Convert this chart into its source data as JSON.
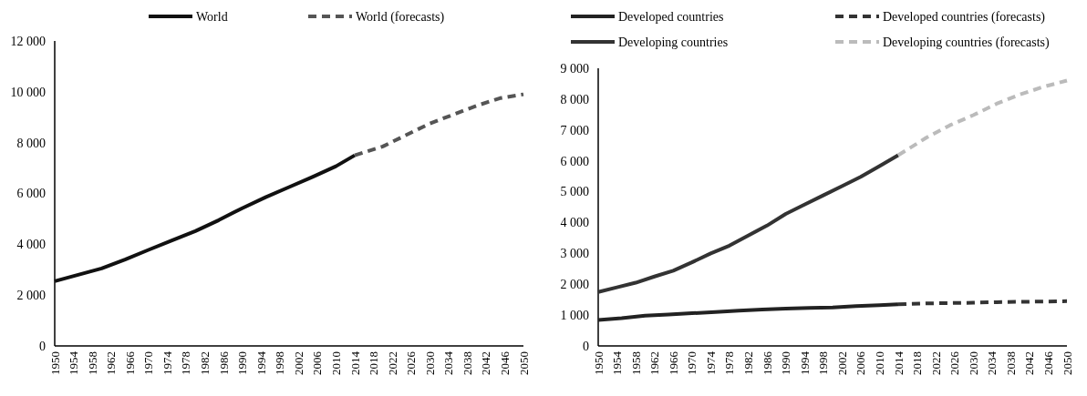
{
  "chart_data": [
    {
      "type": "line",
      "legend": "top",
      "grid": false,
      "xlim": [
        1950,
        2050
      ],
      "xticks": [
        1950,
        1954,
        1958,
        1962,
        1966,
        1970,
        1974,
        1978,
        1982,
        1986,
        1990,
        1994,
        1998,
        2002,
        2006,
        2010,
        2014,
        2018,
        2022,
        2026,
        2030,
        2034,
        2038,
        2042,
        2046,
        2050
      ],
      "ylim": [
        0,
        12000
      ],
      "yticks": [
        {
          "value": 0,
          "label": "0"
        },
        {
          "value": 2000,
          "label": "2 000"
        },
        {
          "value": 4000,
          "label": "4 000"
        },
        {
          "value": 6000,
          "label": "6 000"
        },
        {
          "value": 8000,
          "label": "8 000"
        },
        {
          "value": 10000,
          "label": "10 000"
        },
        {
          "value": 12000,
          "label": "12 000"
        }
      ],
      "series": [
        {
          "name": "World",
          "color": "#111111",
          "line_style": "solid",
          "x": [
            1950,
            1955,
            1960,
            1965,
            1970,
            1975,
            1980,
            1985,
            1990,
            1995,
            2000,
            2005,
            2010,
            2014
          ],
          "values": [
            2550,
            2800,
            3050,
            3400,
            3780,
            4150,
            4520,
            4950,
            5420,
            5850,
            6250,
            6650,
            7070,
            7500
          ]
        },
        {
          "name": "World (forecasts)",
          "color": "#555555",
          "line_style": "dashed",
          "x": [
            2014,
            2020,
            2025,
            2030,
            2035,
            2040,
            2045,
            2050
          ],
          "values": [
            7500,
            7850,
            8300,
            8750,
            9100,
            9450,
            9750,
            9900
          ]
        }
      ]
    },
    {
      "type": "line",
      "legend": "top",
      "grid": false,
      "xlim": [
        1950,
        2050
      ],
      "xticks": [
        1950,
        1954,
        1958,
        1962,
        1966,
        1970,
        1974,
        1978,
        1982,
        1986,
        1990,
        1994,
        1998,
        2002,
        2006,
        2010,
        2014,
        2018,
        2022,
        2026,
        2030,
        2034,
        2038,
        2042,
        2046,
        2050
      ],
      "ylim": [
        0,
        9000
      ],
      "yticks": [
        {
          "value": 0,
          "label": "0"
        },
        {
          "value": 1000,
          "label": "1 000"
        },
        {
          "value": 2000,
          "label": "2 000"
        },
        {
          "value": 3000,
          "label": "3 000"
        },
        {
          "value": 4000,
          "label": "4 000"
        },
        {
          "value": 5000,
          "label": "5 000"
        },
        {
          "value": 6000,
          "label": "6 000"
        },
        {
          "value": 7000,
          "label": "7 000"
        },
        {
          "value": 8000,
          "label": "8 000"
        },
        {
          "value": 9000,
          "label": "9 000"
        }
      ],
      "series": [
        {
          "name": "Developed countries",
          "color": "#222222",
          "line_style": "solid",
          "x": [
            1950,
            1955,
            1960,
            1965,
            1970,
            1975,
            1980,
            1985,
            1990,
            1995,
            2000,
            2005,
            2010,
            2014
          ],
          "values": [
            840,
            900,
            980,
            1020,
            1060,
            1100,
            1140,
            1180,
            1210,
            1230,
            1250,
            1290,
            1320,
            1350
          ]
        },
        {
          "name": "Developed countries (forecasts)",
          "color": "#333333",
          "line_style": "dashed",
          "x": [
            2014,
            2020,
            2025,
            2030,
            2035,
            2040,
            2045,
            2050
          ],
          "values": [
            1350,
            1380,
            1390,
            1400,
            1420,
            1430,
            1440,
            1450
          ]
        },
        {
          "name": "Developing countries",
          "color": "#333333",
          "line_style": "solid",
          "x": [
            1950,
            1954,
            1958,
            1962,
            1966,
            1970,
            1974,
            1978,
            1982,
            1986,
            1990,
            1994,
            1998,
            2002,
            2006,
            2010,
            2014
          ],
          "values": [
            1750,
            1900,
            2050,
            2250,
            2440,
            2710,
            3000,
            3250,
            3580,
            3900,
            4280,
            4580,
            4880,
            5180,
            5480,
            5830,
            6180
          ]
        },
        {
          "name": "Developing countries (forecasts)",
          "color": "#bbbbbb",
          "line_style": "dashed",
          "x": [
            2014,
            2020,
            2025,
            2030,
            2035,
            2040,
            2045,
            2050
          ],
          "values": [
            6180,
            6750,
            7150,
            7480,
            7850,
            8150,
            8400,
            8600
          ]
        }
      ]
    }
  ]
}
